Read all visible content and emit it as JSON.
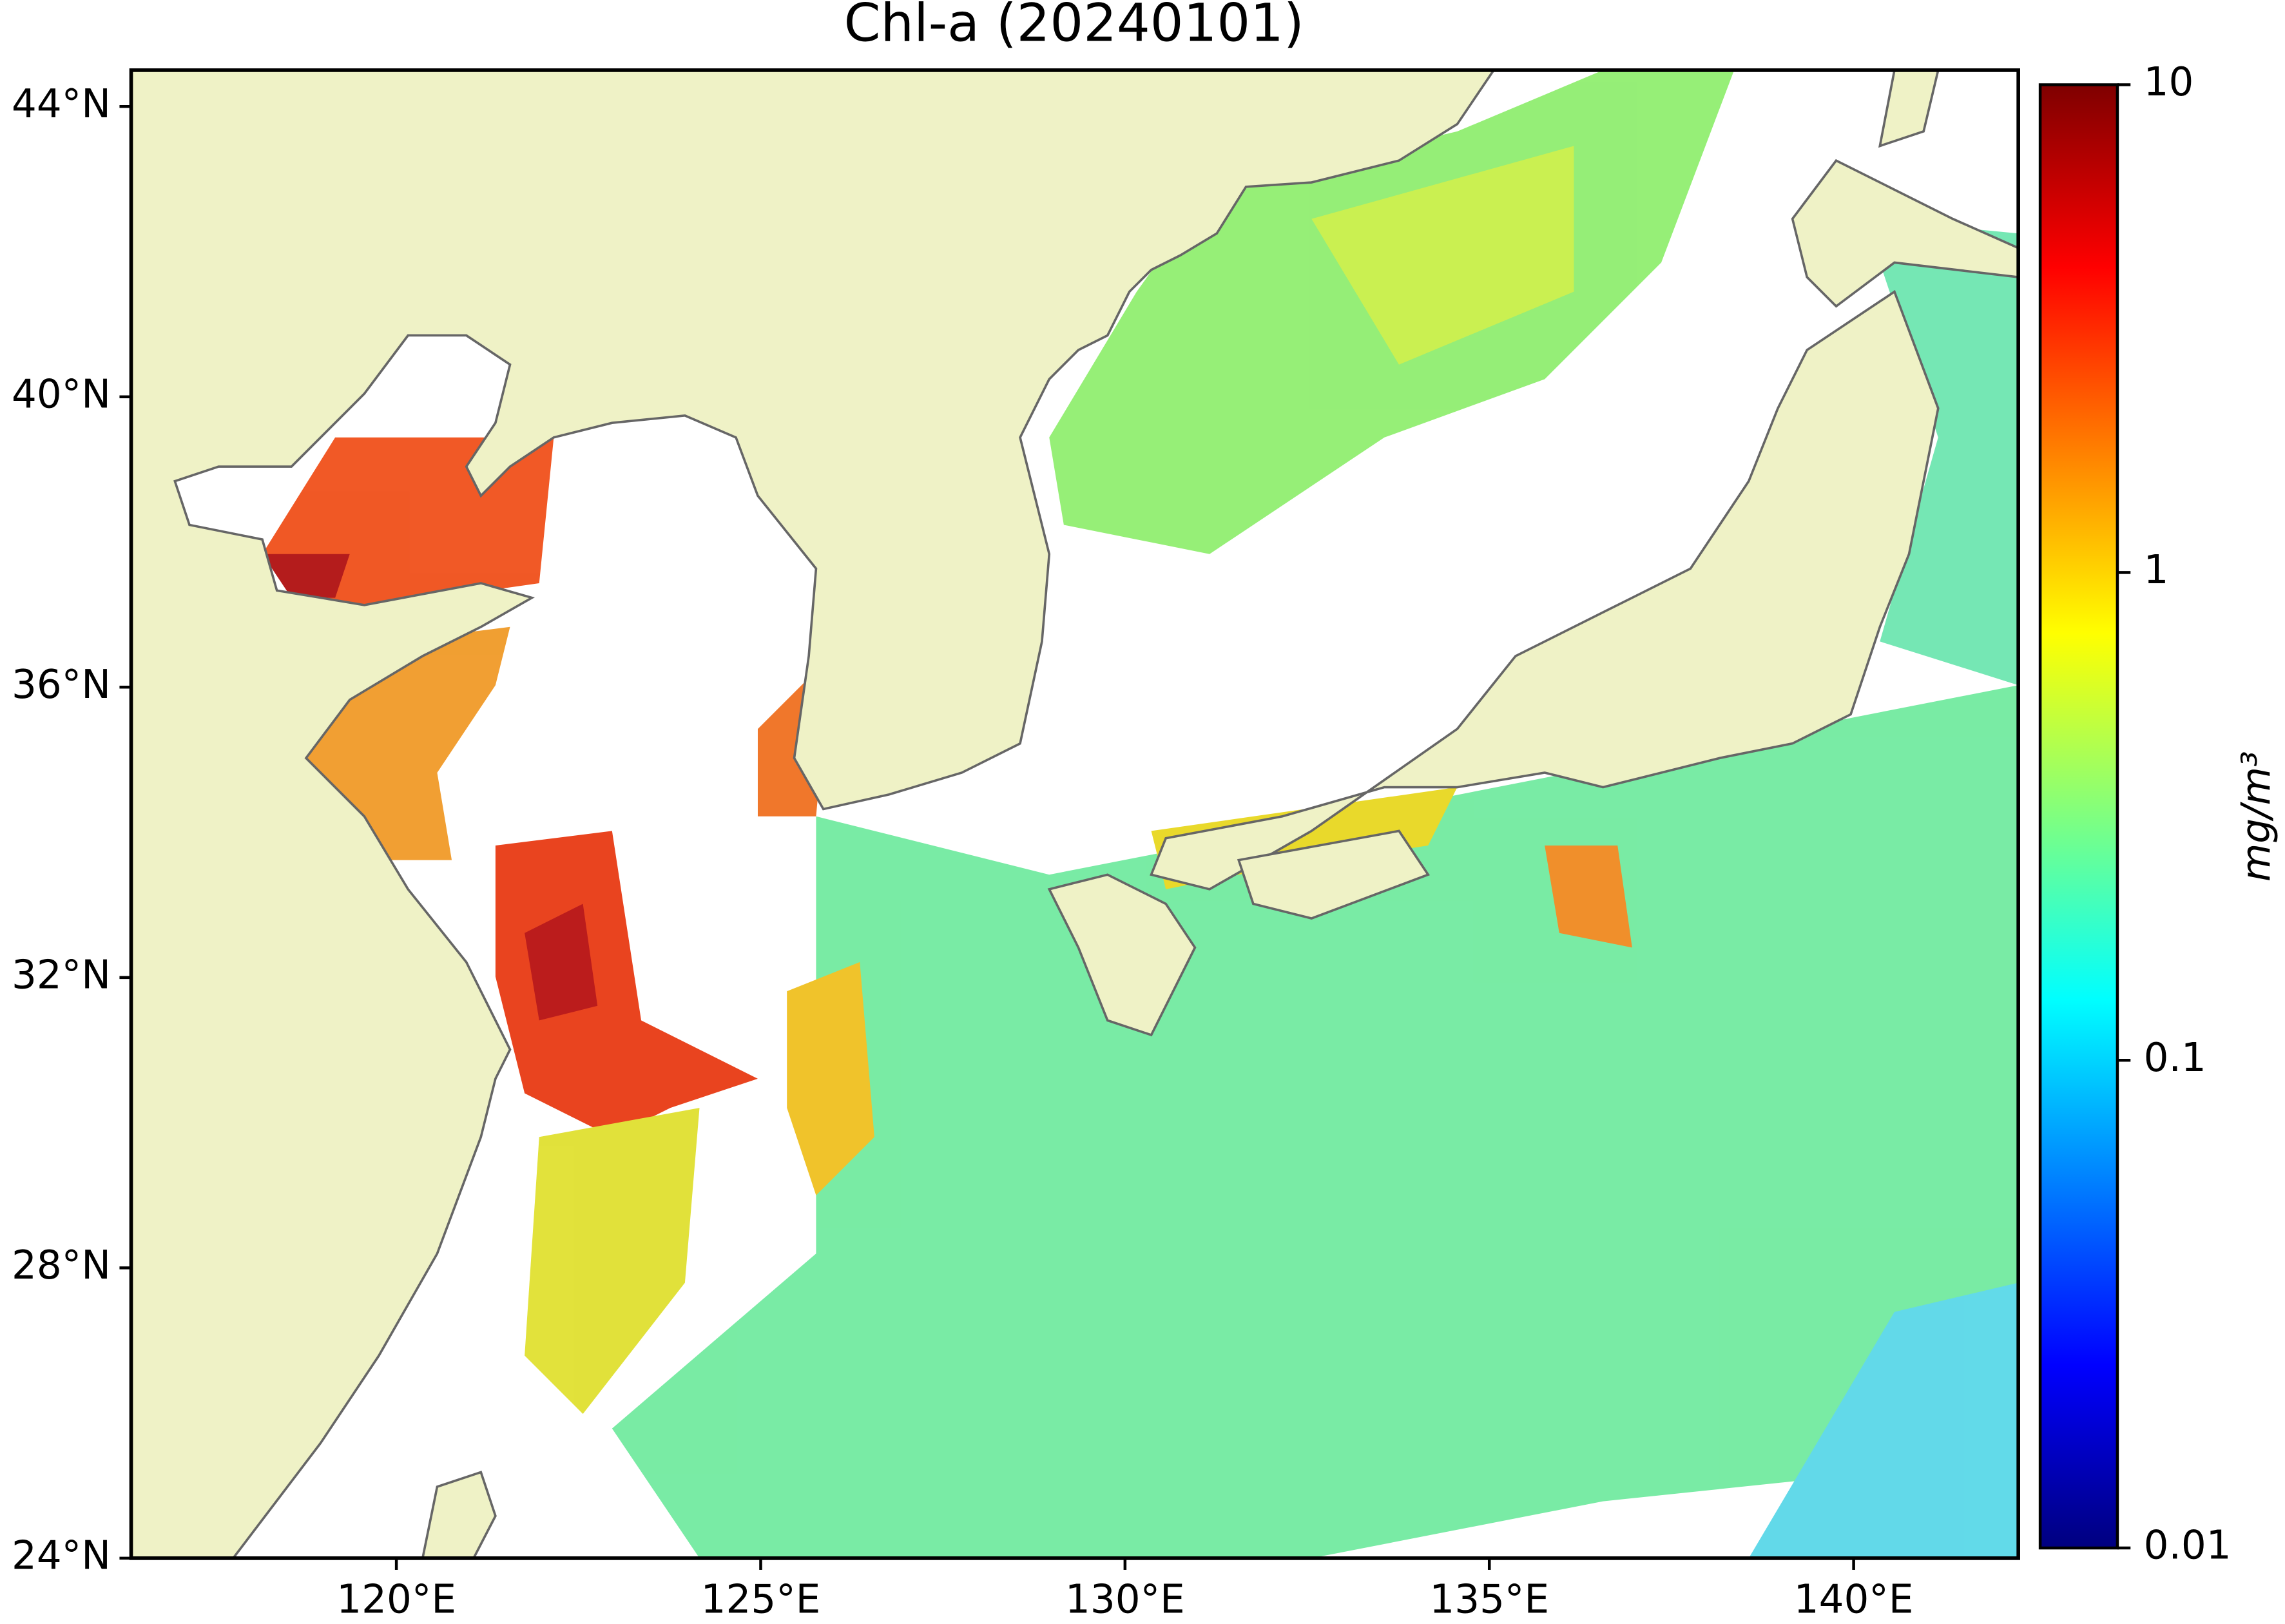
{
  "map": {
    "title": "Chl-a (20240101)",
    "xlim": [
      116.36,
      142.26
    ],
    "ylim": [
      24,
      44.5
    ],
    "xticks": [
      {
        "value": 120,
        "label": "120°E"
      },
      {
        "value": 125,
        "label": "125°E"
      },
      {
        "value": 130,
        "label": "130°E"
      },
      {
        "value": 135,
        "label": "135°E"
      },
      {
        "value": 140,
        "label": "140°E"
      }
    ],
    "yticks": [
      {
        "value": 24,
        "label": "24°N"
      },
      {
        "value": 28,
        "label": "28°N"
      },
      {
        "value": 32,
        "label": "32°N"
      },
      {
        "value": 36,
        "label": "36°N"
      },
      {
        "value": 40,
        "label": "40°N"
      },
      {
        "value": 44,
        "label": "44°N"
      }
    ],
    "colorbar": {
      "label": "mg/m³",
      "lim": [
        0.01,
        10
      ],
      "scale": "log",
      "colormap": "jet",
      "ticks": [
        0.01,
        0.1,
        1,
        10
      ]
    }
  }
}
